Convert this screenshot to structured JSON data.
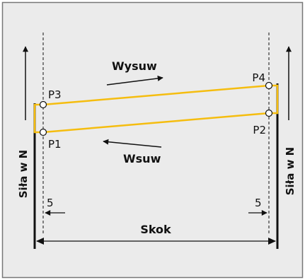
{
  "labels": {
    "extend": "Wysuw",
    "retract": "Wsuw",
    "force_left": "Siła w N",
    "force_right": "Siła w N",
    "stroke": "Skok",
    "offset_left": "5",
    "offset_right": "5"
  },
  "points": {
    "p1": "P1",
    "p2": "P2",
    "p3": "P3",
    "p4": "P4"
  },
  "colors": {
    "background": "#ebebeb",
    "cycle_line": "#f5bd0f",
    "ink": "#111111"
  }
}
